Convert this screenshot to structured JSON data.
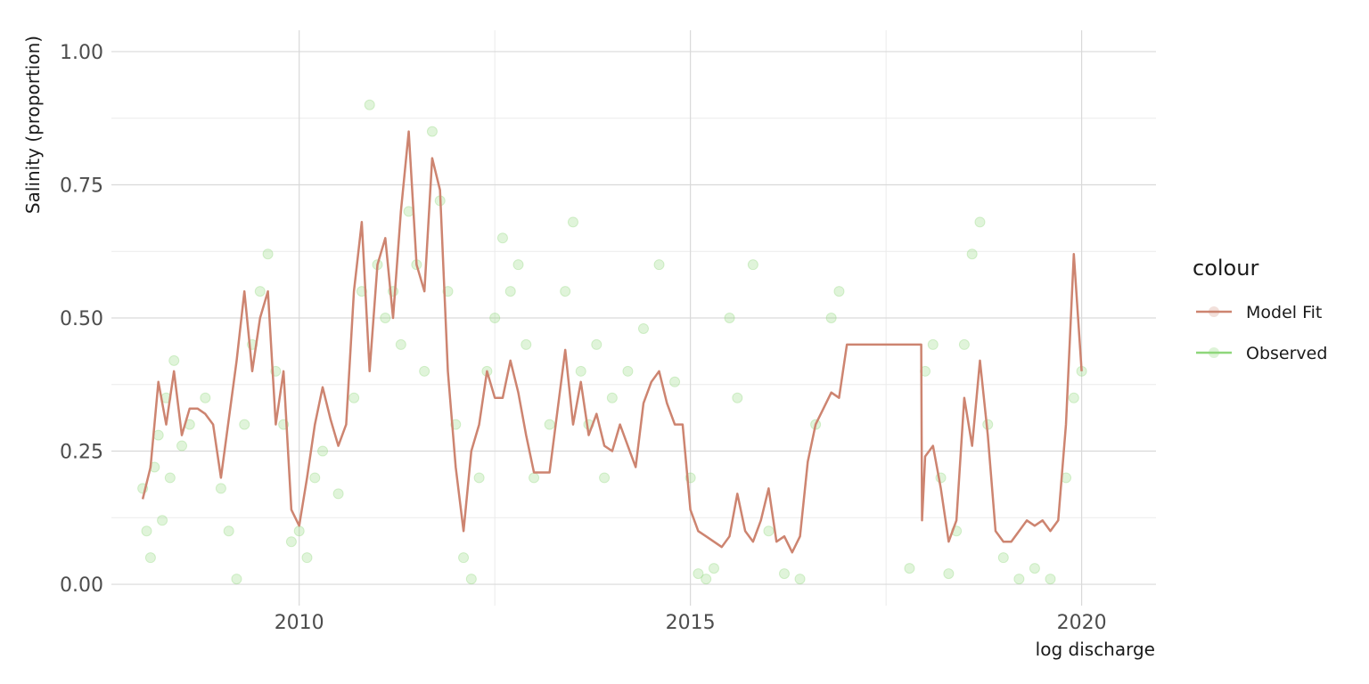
{
  "chart_data": {
    "type": "line",
    "title": "",
    "xlabel": "log discharge",
    "ylabel": "Salinity (proportion)",
    "xlim": [
      2007.6,
      2020.95
    ],
    "ylim": [
      -0.04,
      1.04
    ],
    "x_ticks": [
      2010,
      2015,
      2020
    ],
    "x_tick_labels": [
      "2010",
      "2015",
      "2020"
    ],
    "y_ticks": [
      0,
      0.25,
      0.5,
      0.75,
      1.0
    ],
    "y_tick_labels": [
      "0.00",
      "0.25",
      "0.50",
      "0.75",
      "1.00"
    ],
    "grid": true,
    "legend": {
      "title": "colour",
      "position": "right",
      "entries": [
        {
          "label": "Model Fit",
          "color": "#cd8470"
        },
        {
          "label": "Observed",
          "color": "#8ed67a"
        }
      ]
    },
    "series": [
      {
        "name": "Model Fit",
        "color": "#cd8470",
        "kind": "line",
        "x": [
          2008.0,
          2008.1,
          2008.2,
          2008.3,
          2008.4,
          2008.5,
          2008.6,
          2008.7,
          2008.8,
          2008.9,
          2009.0,
          2009.2,
          2009.3,
          2009.4,
          2009.5,
          2009.6,
          2009.7,
          2009.8,
          2009.9,
          2010.0,
          2010.1,
          2010.2,
          2010.3,
          2010.4,
          2010.5,
          2010.6,
          2010.7,
          2010.8,
          2010.9,
          2011.0,
          2011.1,
          2011.2,
          2011.3,
          2011.4,
          2011.5,
          2011.6,
          2011.7,
          2011.8,
          2011.9,
          2012.0,
          2012.1,
          2012.2,
          2012.3,
          2012.4,
          2012.5,
          2012.6,
          2012.7,
          2012.8,
          2012.9,
          2013.0,
          2013.2,
          2013.4,
          2013.5,
          2013.6,
          2013.7,
          2013.8,
          2013.9,
          2014.0,
          2014.1,
          2014.2,
          2014.3,
          2014.4,
          2014.5,
          2014.6,
          2014.7,
          2014.8,
          2014.9,
          2015.0,
          2015.1,
          2015.2,
          2015.3,
          2015.4,
          2015.5,
          2015.6,
          2015.7,
          2015.8,
          2015.9,
          2016.0,
          2016.1,
          2016.2,
          2016.3,
          2016.4,
          2016.5,
          2016.6,
          2016.7,
          2016.8,
          2016.9,
          2017.0,
          2017.5,
          2017.95,
          2017.96,
          2018.0,
          2018.1,
          2018.2,
          2018.3,
          2018.4,
          2018.5,
          2018.6,
          2018.7,
          2018.8,
          2018.9,
          2019.0,
          2019.1,
          2019.2,
          2019.3,
          2019.4,
          2019.5,
          2019.6,
          2019.7,
          2019.8,
          2019.9,
          2020.0
        ],
        "y": [
          0.16,
          0.22,
          0.38,
          0.3,
          0.4,
          0.28,
          0.33,
          0.33,
          0.32,
          0.3,
          0.2,
          0.42,
          0.55,
          0.4,
          0.5,
          0.55,
          0.3,
          0.4,
          0.14,
          0.11,
          0.2,
          0.3,
          0.37,
          0.31,
          0.26,
          0.3,
          0.55,
          0.68,
          0.4,
          0.6,
          0.65,
          0.5,
          0.7,
          0.85,
          0.6,
          0.55,
          0.8,
          0.74,
          0.4,
          0.22,
          0.1,
          0.25,
          0.3,
          0.4,
          0.35,
          0.35,
          0.42,
          0.36,
          0.28,
          0.21,
          0.21,
          0.44,
          0.3,
          0.38,
          0.28,
          0.32,
          0.26,
          0.25,
          0.3,
          0.26,
          0.22,
          0.34,
          0.38,
          0.4,
          0.34,
          0.3,
          0.3,
          0.14,
          0.1,
          0.09,
          0.08,
          0.07,
          0.09,
          0.17,
          0.1,
          0.08,
          0.12,
          0.18,
          0.08,
          0.09,
          0.06,
          0.09,
          0.23,
          0.3,
          0.33,
          0.36,
          0.35,
          0.45,
          0.45,
          0.45,
          0.12,
          0.24,
          0.26,
          0.18,
          0.08,
          0.12,
          0.35,
          0.26,
          0.42,
          0.28,
          0.1,
          0.08,
          0.08,
          0.1,
          0.12,
          0.11,
          0.12,
          0.1,
          0.12,
          0.3,
          0.62,
          0.4
        ]
      },
      {
        "name": "Observed",
        "color": "#8ed67a",
        "kind": "points",
        "x": [
          2008.0,
          2008.05,
          2008.1,
          2008.15,
          2008.2,
          2008.25,
          2008.3,
          2008.35,
          2008.4,
          2008.5,
          2008.6,
          2008.8,
          2009.0,
          2009.1,
          2009.2,
          2009.3,
          2009.4,
          2009.5,
          2009.6,
          2009.7,
          2009.8,
          2009.9,
          2010.0,
          2010.1,
          2010.2,
          2010.3,
          2010.5,
          2010.7,
          2010.8,
          2010.9,
          2011.0,
          2011.1,
          2011.2,
          2011.3,
          2011.4,
          2011.5,
          2011.6,
          2011.7,
          2011.8,
          2011.9,
          2012.0,
          2012.1,
          2012.2,
          2012.3,
          2012.4,
          2012.5,
          2012.6,
          2012.7,
          2012.8,
          2012.9,
          2013.0,
          2013.2,
          2013.4,
          2013.5,
          2013.6,
          2013.7,
          2013.8,
          2013.9,
          2014.0,
          2014.2,
          2014.4,
          2014.6,
          2014.8,
          2015.0,
          2015.1,
          2015.2,
          2015.3,
          2015.5,
          2015.6,
          2015.8,
          2016.0,
          2016.2,
          2016.4,
          2016.6,
          2016.8,
          2016.9,
          2017.8,
          2018.0,
          2018.1,
          2018.2,
          2018.3,
          2018.4,
          2018.5,
          2018.6,
          2018.7,
          2018.8,
          2019.0,
          2019.2,
          2019.4,
          2019.6,
          2019.8,
          2019.9,
          2020.0
        ],
        "y": [
          0.18,
          0.1,
          0.05,
          0.22,
          0.28,
          0.12,
          0.35,
          0.2,
          0.42,
          0.26,
          0.3,
          0.35,
          0.18,
          0.1,
          0.01,
          0.3,
          0.45,
          0.55,
          0.62,
          0.4,
          0.3,
          0.08,
          0.1,
          0.05,
          0.2,
          0.25,
          0.17,
          0.35,
          0.55,
          0.9,
          0.6,
          0.5,
          0.55,
          0.45,
          0.7,
          0.6,
          0.4,
          0.85,
          0.72,
          0.55,
          0.3,
          0.05,
          0.01,
          0.2,
          0.4,
          0.5,
          0.65,
          0.55,
          0.6,
          0.45,
          0.2,
          0.3,
          0.55,
          0.68,
          0.4,
          0.3,
          0.45,
          0.2,
          0.35,
          0.4,
          0.48,
          0.6,
          0.38,
          0.2,
          0.02,
          0.01,
          0.03,
          0.5,
          0.35,
          0.6,
          0.1,
          0.02,
          0.01,
          0.3,
          0.5,
          0.55,
          0.03,
          0.4,
          0.45,
          0.2,
          0.02,
          0.1,
          0.45,
          0.62,
          0.68,
          0.3,
          0.05,
          0.01,
          0.03,
          0.01,
          0.2,
          0.35,
          0.4
        ]
      }
    ]
  }
}
